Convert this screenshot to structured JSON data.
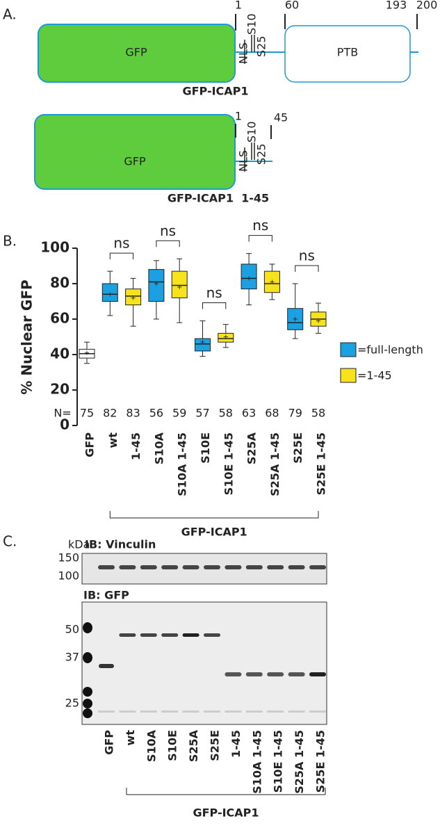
{
  "panel_a": {
    "label": "A.",
    "full": {
      "domain": "GFP",
      "ptb": "PTB",
      "nls": "NLS",
      "sites": [
        "S10",
        "S25"
      ],
      "positions": [
        1,
        60,
        193,
        200
      ],
      "name": "GFP-ICAP1"
    },
    "short": {
      "domain": "GFP",
      "nls": "NLS",
      "sites": [
        "S10",
        "S25"
      ],
      "positions": [
        1,
        45
      ],
      "name": "GFP-ICAP1  1-45"
    }
  },
  "chart_data": {
    "type": "box",
    "panel_label": "B.",
    "y_label": "% Nuclear GFP",
    "categories": [
      "GFP",
      "wt",
      "1-45",
      "S10A",
      "S10A 1-45",
      "S10E",
      "S10E 1-45",
      "S25A",
      "S25A 1-45",
      "S25E",
      "S25E 1-45"
    ],
    "whisker_low": [
      35,
      62,
      56,
      60,
      58,
      39,
      44,
      68,
      71,
      49,
      52
    ],
    "q1": [
      38,
      70,
      68,
      70,
      72,
      42,
      47,
      77,
      75,
      54,
      56
    ],
    "median": [
      40.5,
      74,
      73,
      81,
      79,
      46,
      49,
      83,
      80,
      58,
      60
    ],
    "q3": [
      43,
      80,
      77,
      88,
      87,
      49,
      52,
      91,
      87,
      66,
      64
    ],
    "whisker_high": [
      47,
      87,
      83,
      93,
      94,
      59,
      57,
      97,
      91,
      80,
      69
    ],
    "mean": [
      41,
      74,
      72,
      80,
      78,
      47,
      50,
      83,
      81,
      60,
      59
    ],
    "box_colors": [
      "#ffffff",
      "#1ba1e2",
      "#f7e31b",
      "#1ba1e2",
      "#f7e31b",
      "#1ba1e2",
      "#f7e31b",
      "#1ba1e2",
      "#f7e31b",
      "#1ba1e2",
      "#f7e31b"
    ],
    "ylim": [
      0,
      100
    ],
    "yticks": [
      0,
      20,
      40,
      60,
      80,
      100
    ],
    "grid": false,
    "n_label": "N=",
    "n_values": [
      75,
      82,
      83,
      56,
      59,
      57,
      58,
      63,
      68,
      79,
      58
    ],
    "comparisons": [
      "ns",
      "ns",
      "ns",
      "ns",
      "ns"
    ],
    "group_label": "GFP-ICAP1",
    "legend": [
      {
        "label": "=full-length",
        "color": "#1ba1e2"
      },
      {
        "label": "=1-45",
        "color": "#f7e31b"
      }
    ]
  },
  "panel_c": {
    "label": "C.",
    "unit": "kDa",
    "vinculin": {
      "title": "IB: Vinculin",
      "markers": [
        150,
        100
      ]
    },
    "gfp": {
      "title": "IB: GFP",
      "markers": [
        50,
        37,
        25
      ]
    },
    "lanes": [
      "GFP",
      "wt",
      "S10A",
      "S10E",
      "S25A",
      "S25E",
      "1-45",
      "S10A 1-45",
      "S10E 1-45",
      "S25A 1-45",
      "S25E 1-45"
    ],
    "group": "GFP-ICAP1"
  }
}
